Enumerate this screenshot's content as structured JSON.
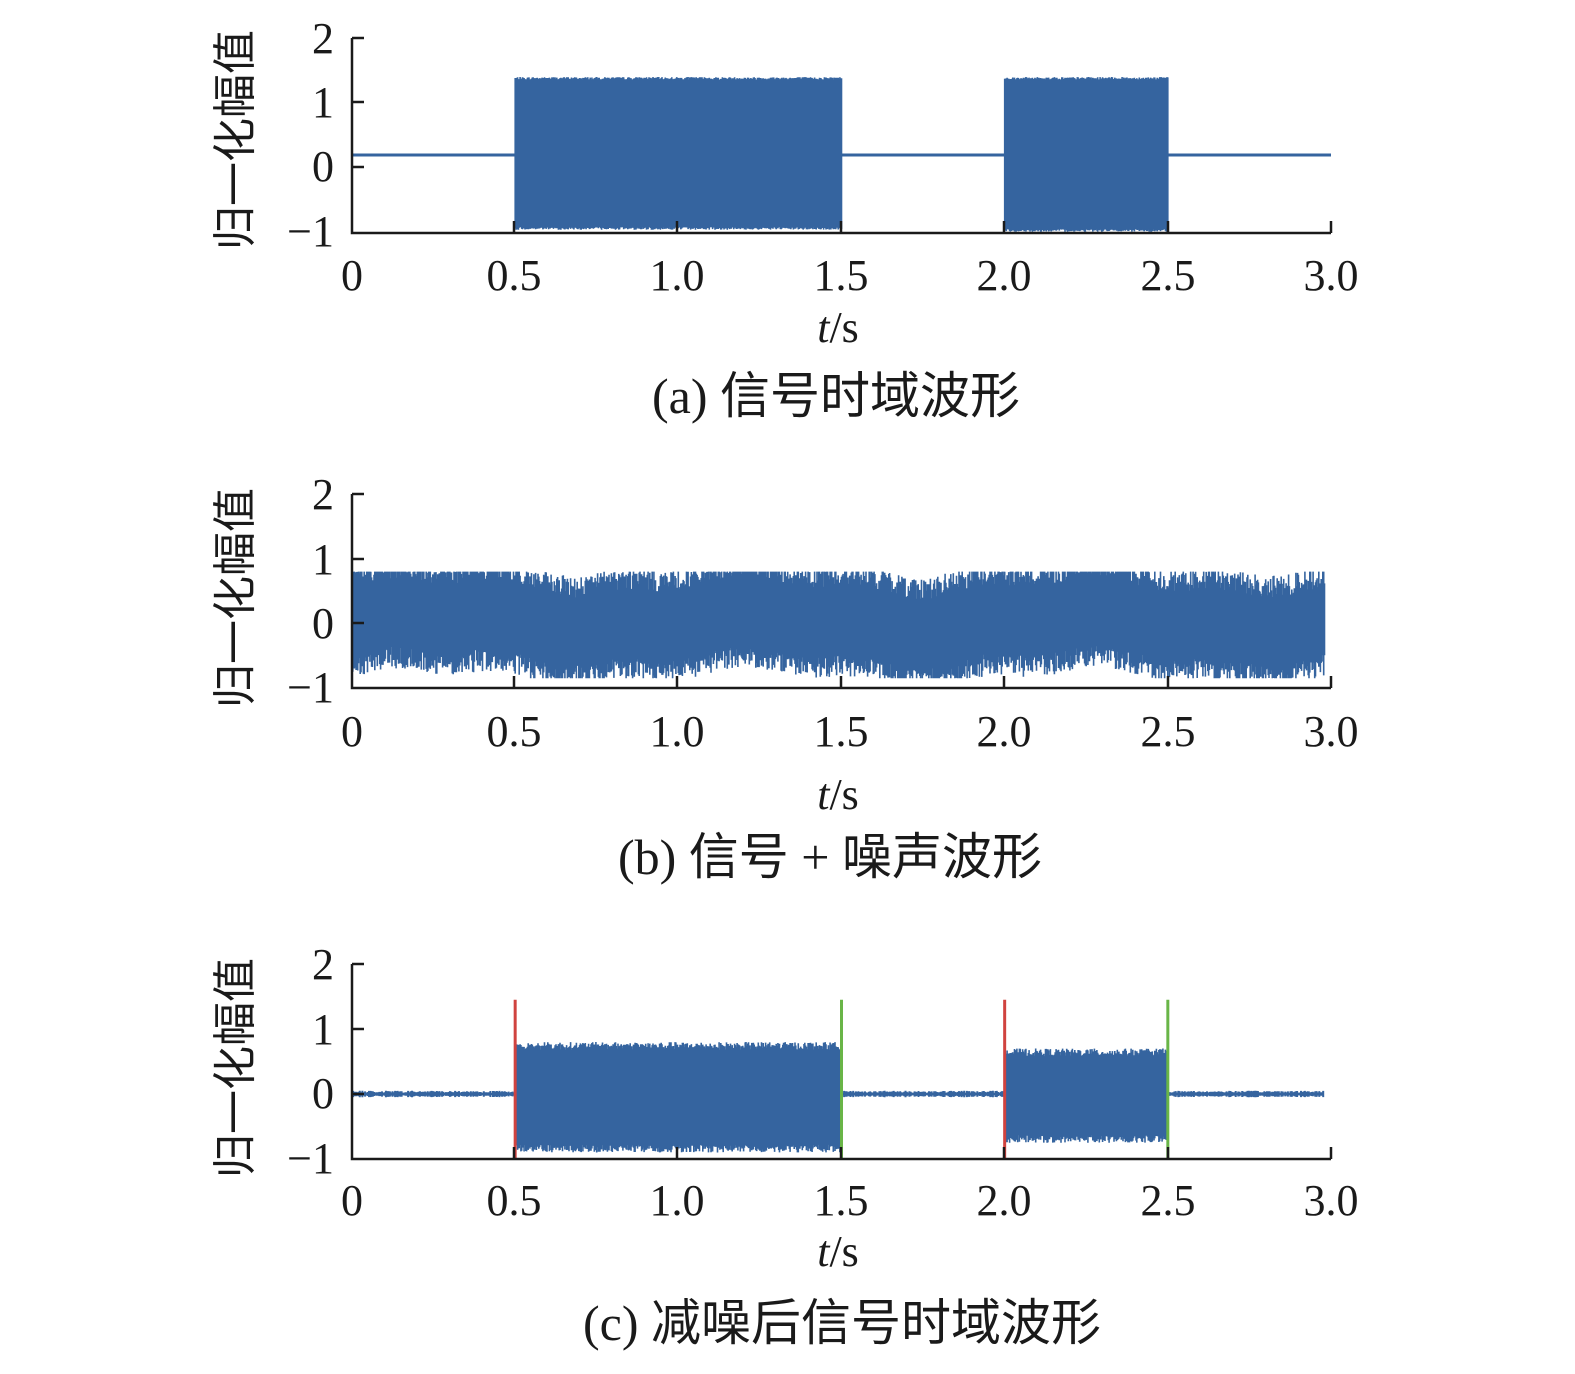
{
  "chart_data": [
    {
      "type": "line",
      "caption": "(a) 信号时域波形",
      "ylabel": "归一化幅值",
      "xlabel_italic": "t",
      "xlabel_unit": "/s",
      "xlim": [
        0,
        3.0
      ],
      "ylim": [
        -1,
        2
      ],
      "xticks": [
        "0",
        "0.5",
        "1.0",
        "1.5",
        "2.0",
        "2.5",
        "3.0"
      ],
      "yticks": [
        "−1",
        "0",
        "1",
        "2"
      ],
      "line_color": "#35649f",
      "baseline": 0.2,
      "bursts": [
        {
          "start": 0.5,
          "end": 1.5,
          "min": -0.95,
          "max": 1.4
        },
        {
          "start": 2.0,
          "end": 2.5,
          "min": -0.98,
          "max": 1.4
        }
      ]
    },
    {
      "type": "line",
      "caption": "(b) 信号 + 噪声波形",
      "ylabel": "归一化幅值",
      "xlabel_italic": "t",
      "xlabel_unit": "/s",
      "xlim": [
        0,
        3.0
      ],
      "ylim": [
        -1,
        2
      ],
      "xticks": [
        "0",
        "0.5",
        "1.0",
        "1.5",
        "2.0",
        "2.5",
        "3.0"
      ],
      "yticks": [
        "−1",
        "0",
        "1",
        "2"
      ],
      "line_color": "#35649f",
      "noise_range": [
        -0.85,
        0.8
      ],
      "noise_core": [
        -0.45,
        0.5
      ]
    },
    {
      "type": "line",
      "caption": "(c) 减噪后信号时域波形",
      "ylabel": "归一化幅值",
      "xlabel_italic": "t",
      "xlabel_unit": "/s",
      "xlim": [
        0,
        3.0
      ],
      "ylim": [
        -1,
        2
      ],
      "xticks": [
        "0",
        "0.5",
        "1.0",
        "1.5",
        "2.0",
        "2.5",
        "3.0"
      ],
      "yticks": [
        "−1",
        "0",
        "1",
        "2"
      ],
      "line_color": "#35649f",
      "baseline": 0.0,
      "bursts": [
        {
          "start": 0.5,
          "end": 1.5,
          "min": -0.9,
          "max": 0.8
        },
        {
          "start": 2.0,
          "end": 2.5,
          "min": -0.75,
          "max": 0.7
        }
      ],
      "start_markers": {
        "color": "#d0433f",
        "x": [
          0.5,
          2.0
        ],
        "top": 1.45
      },
      "end_markers": {
        "color": "#69b547",
        "x": [
          1.5,
          2.5
        ],
        "top": 1.45
      }
    }
  ]
}
